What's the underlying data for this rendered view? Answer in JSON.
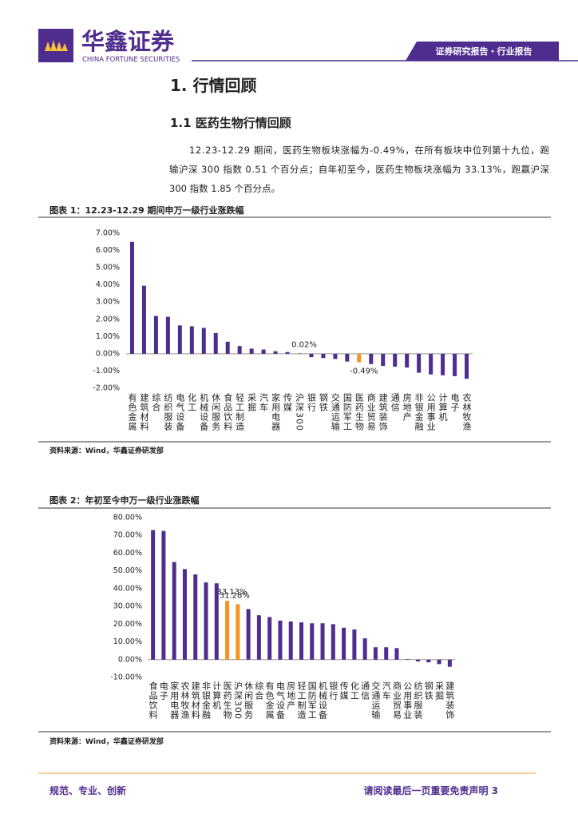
{
  "header": {
    "brand": "华鑫证券",
    "brand_en": "CHINA FORTUNE SECURITIES",
    "banner": "证券研究报告・行业报告"
  },
  "section": {
    "title": "1. 行情回顾",
    "subtitle": "1.1 医药生物行情回顾"
  },
  "paragraph": [
    "12.23-12.29 期间，医药生物板块涨幅为-0.49%，在所有板块中位列第十九位，跑",
    "输沪深 300 指数 0.51 个百分点；自年初至今，医药生物板块涨幅为 33.13%，跑赢沪深",
    "300 指数 1.85 个百分点。"
  ],
  "chart_data": [
    {
      "type": "bar",
      "title": "图表 1：12.23-12.29 期间申万一级行业涨跌幅",
      "source": "资料来源：Wind，华鑫证券研发部",
      "categories": [
        "有色金属",
        "建筑材料",
        "综合",
        "纺织服装",
        "电气设备",
        "化工",
        "机械设备",
        "休闲服务",
        "食品饮料",
        "轻工制造",
        "采掘",
        "汽车",
        "家用电器",
        "传媒",
        "沪深300",
        "银行",
        "钢铁",
        "交通运输",
        "国防军工",
        "医药生物",
        "商业贸易",
        "建筑装饰",
        "通信",
        "房地产",
        "非银金融",
        "公用事业",
        "计算机",
        "电子",
        "农林牧渔"
      ],
      "values": [
        6.5,
        3.95,
        2.2,
        2.15,
        1.65,
        1.6,
        1.5,
        1.2,
        0.7,
        0.45,
        0.3,
        0.25,
        0.15,
        0.1,
        0.02,
        -0.2,
        -0.25,
        -0.3,
        -0.45,
        -0.49,
        -0.6,
        -0.7,
        -0.75,
        -0.8,
        -1.1,
        -1.2,
        -1.25,
        -1.3,
        -1.45
      ],
      "value_labels": [
        null,
        null,
        null,
        null,
        null,
        null,
        null,
        null,
        null,
        null,
        null,
        null,
        null,
        null,
        "0.02%",
        null,
        null,
        null,
        null,
        "-0.49%",
        null,
        null,
        null,
        null,
        null,
        null,
        null,
        null,
        null
      ],
      "color": "#4f2d8f",
      "highlight": {
        "color": "#f7931e",
        "categories": [
          "医药生物"
        ]
      },
      "ylim": [
        -2,
        7
      ],
      "yticks": [
        {
          "value": 7,
          "label": "7.00%"
        },
        {
          "value": 6,
          "label": "6.00%"
        },
        {
          "value": 5,
          "label": "5.00%"
        },
        {
          "value": 4,
          "label": "4.00%"
        },
        {
          "value": 3,
          "label": "3.00%"
        },
        {
          "value": 2,
          "label": "2.00%"
        },
        {
          "value": 1,
          "label": "1.00%"
        },
        {
          "value": 0,
          "label": "0.00%"
        },
        {
          "value": -1,
          "label": "-1.00%"
        },
        {
          "value": -2,
          "label": "-2.00%"
        }
      ]
    },
    {
      "type": "bar",
      "title": "图表 2：年初至今申万一级行业涨跌幅",
      "source": "资料来源：Wind，华鑫证券研发部",
      "categories": [
        "食品饮料",
        "电子",
        "家用电器",
        "农林牧渔",
        "建筑材料",
        "非银金融",
        "计算机",
        "医药生物",
        "沪深300",
        "休闲服务",
        "综合",
        "有色金属",
        "电气设备",
        "房地产",
        "轻工制造",
        "国防军工",
        "机械设备",
        "银行",
        "传媒",
        "化工",
        "通信",
        "交通运输",
        "汽车",
        "商业贸易",
        "公用事业",
        "纺织服装",
        "钢铁",
        "采掘",
        "建筑装饰"
      ],
      "values": [
        73,
        72.5,
        55,
        51,
        48,
        43.5,
        43,
        33.13,
        31.28,
        28.5,
        25,
        24,
        22,
        21.5,
        21,
        20.5,
        20.5,
        20,
        18,
        17,
        12,
        7,
        7,
        6.5,
        0.3,
        -1,
        -1.5,
        -2.5,
        -4
      ],
      "value_labels": [
        null,
        null,
        null,
        null,
        null,
        null,
        null,
        "33.13%",
        "31.28%",
        null,
        null,
        null,
        null,
        null,
        null,
        null,
        null,
        null,
        null,
        null,
        null,
        null,
        null,
        null,
        null,
        null,
        null,
        null,
        null
      ],
      "color": "#4f2d8f",
      "highlight": {
        "color": "#f7931e",
        "categories": [
          "医药生物",
          "沪深300"
        ]
      },
      "ylim": [
        -10,
        80
      ],
      "yticks": [
        {
          "value": 80,
          "label": "80.00%"
        },
        {
          "value": 70,
          "label": "70.00%"
        },
        {
          "value": 60,
          "label": "60.00%"
        },
        {
          "value": 50,
          "label": "50.00%"
        },
        {
          "value": 40,
          "label": "40.00%"
        },
        {
          "value": 30,
          "label": "30.00%"
        },
        {
          "value": 20,
          "label": "20.00%"
        },
        {
          "value": 10,
          "label": "10.00%"
        },
        {
          "value": 0,
          "label": "0.00%"
        },
        {
          "value": -10,
          "label": "-10.00%"
        }
      ]
    }
  ],
  "footer": {
    "motto": "规范、专业、创新",
    "notice": "请阅读最后一页重要免责声明 3"
  }
}
